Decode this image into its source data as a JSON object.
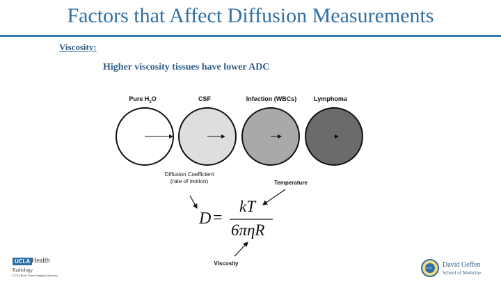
{
  "slide": {
    "title": "Factors that Affect Diffusion Measurements",
    "section_label": "Viscosity:",
    "statement": "Higher viscosity tissues have lower ADC"
  },
  "figure": {
    "circles": [
      {
        "label_pre": "Pure H",
        "label_sub": "2",
        "label_post": "O",
        "fill": "#ffffff",
        "arrow_len": 1.0
      },
      {
        "label_pre": "CSF",
        "label_sub": "",
        "label_post": "",
        "fill": "#dedede",
        "arrow_len": 0.62
      },
      {
        "label_pre": "Infection (WBCs)",
        "label_sub": "",
        "label_post": "",
        "fill": "#a9a9a9",
        "arrow_len": 0.38
      },
      {
        "label_pre": "Lymphoma",
        "label_sub": "",
        "label_post": "",
        "fill": "#6b6b6b",
        "arrow_len": 0.15
      }
    ],
    "diffusion_coefficient_label": "Diffusion Coefficient",
    "diffusion_coefficient_sub": "(rate of motion)",
    "temperature_label": "Temperature",
    "viscosity_label": "Viscosity"
  },
  "formula": {
    "lhs": "D",
    "equals": "=",
    "numerator": "kT",
    "denominator": "6πηR"
  },
  "footer": {
    "left_badge": "UCLA",
    "left_health": "Health",
    "left_dept": "Radiology",
    "left_small": "UCLA Brain Tumor Imaging Laboratory",
    "right_name": "David Geffen",
    "right_school": "School of Medicine",
    "right_seal": "UCLA"
  },
  "colors": {
    "title": "#2f6fa3",
    "subtitle": "#2f5d8a"
  }
}
